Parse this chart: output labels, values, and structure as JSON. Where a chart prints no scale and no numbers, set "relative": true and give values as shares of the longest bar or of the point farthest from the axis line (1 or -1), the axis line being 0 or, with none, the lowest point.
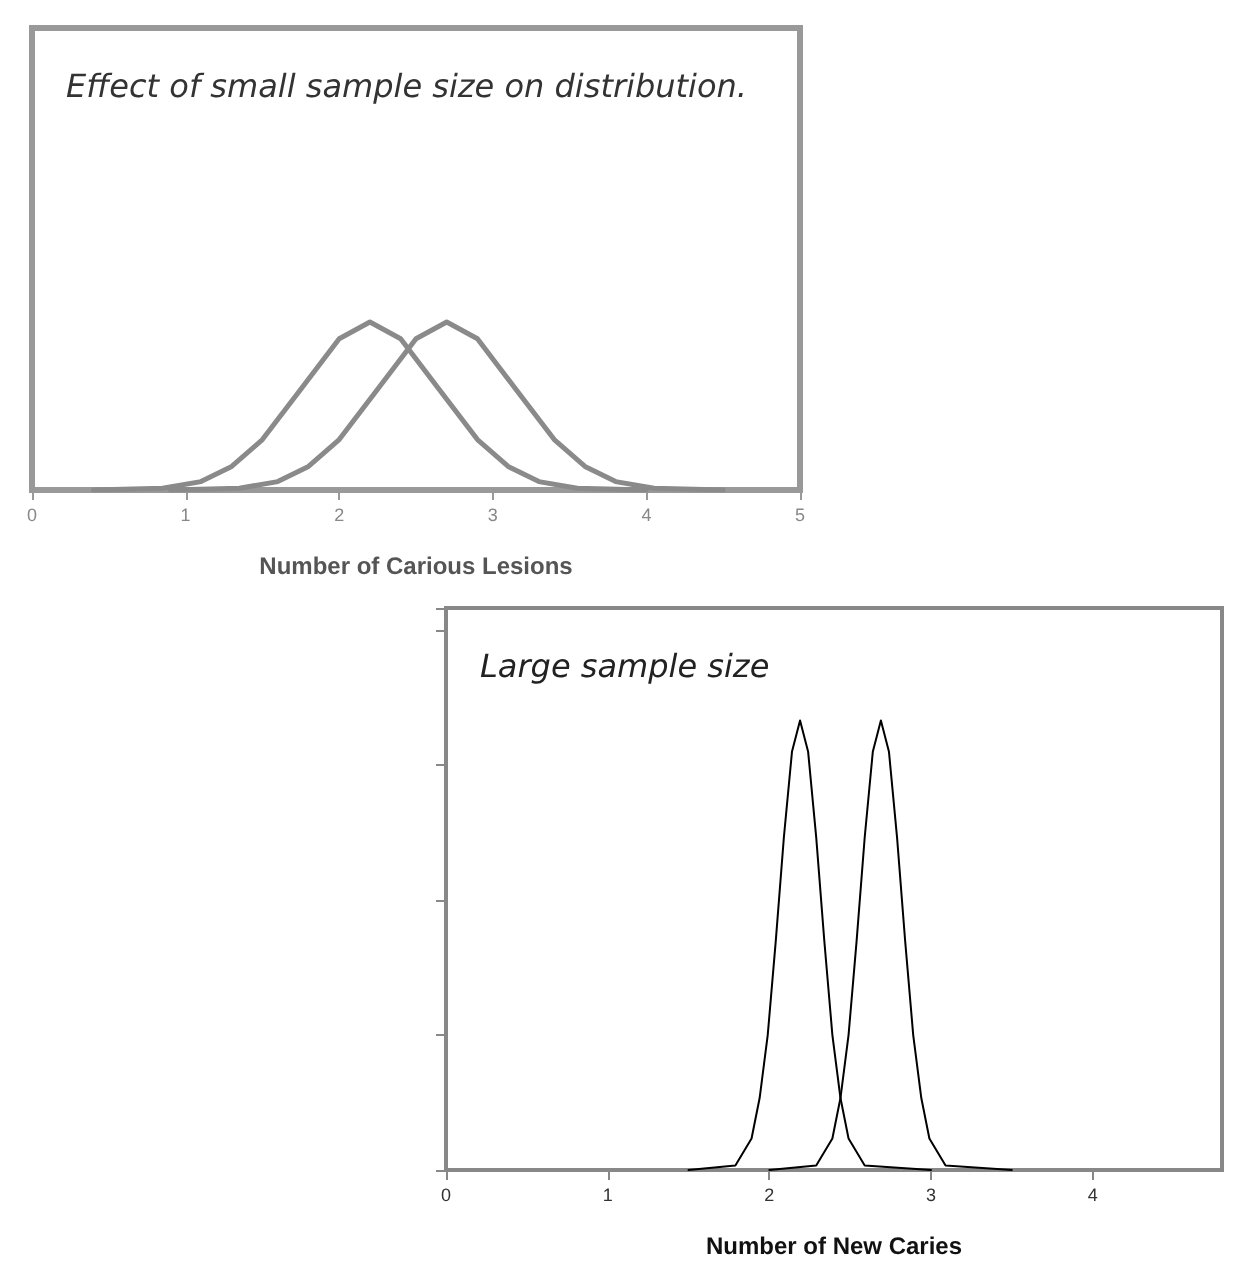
{
  "chart_data": [
    {
      "type": "line",
      "title": "Effect of small sample size on distribution.",
      "xlabel": "Number of Carious Lesions",
      "relative": true,
      "xlim": [
        0,
        5
      ],
      "xticks": [
        0,
        1,
        2,
        3,
        4,
        5
      ],
      "marker": "none",
      "line_style": "solid",
      "series": [
        {
          "color": "#8a8a8a",
          "x": [
            0.4,
            0.85,
            1.1,
            1.3,
            1.5,
            1.75,
            2.0,
            2.2,
            2.4,
            2.65,
            2.9,
            3.1,
            3.3,
            3.55,
            4.0
          ],
          "values": [
            0,
            0.01,
            0.05,
            0.14,
            0.3,
            0.6,
            0.9,
            1,
            0.9,
            0.6,
            0.3,
            0.14,
            0.05,
            0.01,
            0
          ]
        },
        {
          "color": "#8a8a8a",
          "x": [
            0.9,
            1.35,
            1.6,
            1.8,
            2.0,
            2.25,
            2.5,
            2.7,
            2.9,
            3.15,
            3.4,
            3.6,
            3.8,
            4.05,
            4.5
          ],
          "values": [
            0,
            0.01,
            0.05,
            0.14,
            0.3,
            0.6,
            0.9,
            1,
            0.9,
            0.6,
            0.3,
            0.14,
            0.05,
            0.01,
            0
          ]
        }
      ]
    },
    {
      "type": "line",
      "title": "Large sample size",
      "xlabel": "Number of New Caries",
      "relative": true,
      "xlim": [
        0,
        4.8
      ],
      "xticks": [
        0,
        1,
        2,
        3,
        4
      ],
      "marker": "none",
      "line_style": "solid",
      "series": [
        {
          "color": "#000000",
          "x": [
            1.5,
            1.79,
            1.89,
            1.94,
            1.99,
            2.04,
            2.09,
            2.14,
            2.19,
            2.24,
            2.29,
            2.34,
            2.39,
            2.44,
            2.49,
            2.59,
            3.0
          ],
          "values": [
            0,
            0.01,
            0.07,
            0.16,
            0.3,
            0.51,
            0.74,
            0.93,
            1,
            0.93,
            0.74,
            0.51,
            0.3,
            0.16,
            0.07,
            0.01,
            0
          ]
        },
        {
          "color": "#000000",
          "x": [
            2.0,
            2.29,
            2.39,
            2.44,
            2.49,
            2.54,
            2.59,
            2.64,
            2.69,
            2.74,
            2.79,
            2.84,
            2.89,
            2.94,
            2.99,
            3.09,
            3.5
          ],
          "values": [
            0,
            0.01,
            0.07,
            0.16,
            0.3,
            0.51,
            0.74,
            0.93,
            1,
            0.93,
            0.74,
            0.51,
            0.3,
            0.16,
            0.07,
            0.01,
            0
          ]
        }
      ]
    }
  ]
}
